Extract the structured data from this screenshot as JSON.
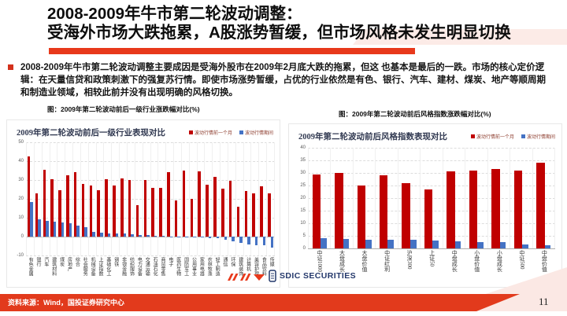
{
  "slide": {
    "title_line1": "2008-2009年牛市第二轮波动调整：",
    "title_line2": "受海外市场大跌拖累，A股涨势暂缓，但市场风格未发生明显切换",
    "body": "2008-2009年牛市第二轮波动调整主要成因是受海外股市在2009年2月底大跌的拖累，但这 也基本是最后的一跌。市场的核心定价逻辑：在天量信贷和政策刺激下的强复苏行情。即使市场涨势暂缓，占优的行业依然是有色、银行、汽车、建材、煤炭、地产等顺周期和制造业领域，相较此前并没有出现明确的风格切换。",
    "caption_left": "图：2009年第二轮波动前后一级行业涨跌幅对比(%)",
    "caption_right": "图：2009年第二轮波动前后风格指数涨跌幅对比(%)"
  },
  "footer": {
    "source": "资料来源：Wind，国投证券研究中心",
    "page_number": "11",
    "logo_text": "SDIC SECURITIES"
  },
  "colors": {
    "accent_red": "#e8391b",
    "footer_red": "#e23a1c",
    "bar_red": "#c00000",
    "bar_blue": "#4472c4",
    "light_pink": "#fbe8e4",
    "logo_navy": "#24386b"
  },
  "chart_data": [
    {
      "type": "bar",
      "title": "2009年第二轮波动前后一级行业表现对比",
      "legend_position": "top-right",
      "grid": true,
      "ylim": [
        -10,
        50
      ],
      "yticks": [
        -10,
        0,
        10,
        20,
        30,
        40,
        50
      ],
      "bar_layout": [
        [
          10,
          40
        ],
        [
          50,
          40
        ]
      ],
      "categories": [
        "有色金属",
        "银行",
        "汽车",
        "建筑材料",
        "煤炭",
        "房地产",
        "综合",
        "社会服务",
        "机械设备",
        "上证指数",
        "基础化工",
        "钢铁",
        "非银金融",
        "纺织服饰",
        "电力设备",
        "交通运输",
        "石油石化",
        "商贸零售",
        "电子",
        "医药生物",
        "国防军工",
        "公用事业",
        "家用电器",
        "农林牧渔",
        "轻工制造",
        "通信",
        "环保",
        "建筑装饰",
        "计算机",
        "美容护理",
        "食品饮料",
        "传媒"
      ],
      "series": [
        {
          "name": "波动行情前一个月",
          "color": "#c00000",
          "values": [
            42.5,
            23,
            35.5,
            30.5,
            24.5,
            32.5,
            34,
            28,
            27,
            24.5,
            30.5,
            27,
            31,
            30,
            16.5,
            30,
            26,
            26,
            34,
            19,
            35,
            20,
            34.5,
            27.5,
            31.5,
            25.5,
            29.5,
            16,
            24,
            23,
            26.5,
            23
          ]
        },
        {
          "name": "波动行情期间",
          "color": "#4472c4",
          "values": [
            18.5,
            9,
            8.5,
            8,
            7.5,
            7,
            6,
            5,
            2.5,
            2,
            1.8,
            1.5,
            1.5,
            1.2,
            1,
            0.8,
            0.5,
            0.3,
            0.2,
            -0.2,
            -0.3,
            -0.5,
            -0.5,
            -0.8,
            -1,
            -1.5,
            -2.5,
            -3.5,
            -4,
            -4.5,
            -4.5,
            -6
          ]
        }
      ]
    },
    {
      "type": "bar",
      "title": "2009年第二轮波动前后风格指数表现对比",
      "legend_position": "top-right",
      "grid": true,
      "ylim": [
        0,
        40
      ],
      "yticks": [
        0,
        5,
        10,
        15,
        20,
        25,
        30,
        35,
        40
      ],
      "bar_layout": [
        [
          17,
          38
        ],
        [
          55,
          28
        ]
      ],
      "categories": [
        "中证1000",
        "大盘成长",
        "大盘价值",
        "中证红利",
        "沪深300",
        "上证50",
        "中盘成长",
        "小盘价值",
        "小盘成长",
        "中证500",
        "中盘价值"
      ],
      "series": [
        {
          "name": "波动行情前一个月",
          "color": "#c00000",
          "values": [
            29.5,
            30,
            25,
            29,
            26,
            23.5,
            30.5,
            31,
            31.5,
            31,
            34
          ]
        },
        {
          "name": "波动行情期间",
          "color": "#4472c4",
          "values": [
            4,
            3.8,
            3.5,
            3.4,
            3.3,
            3.2,
            2.8,
            2.6,
            2.4,
            1.7,
            1.4
          ]
        }
      ]
    }
  ]
}
